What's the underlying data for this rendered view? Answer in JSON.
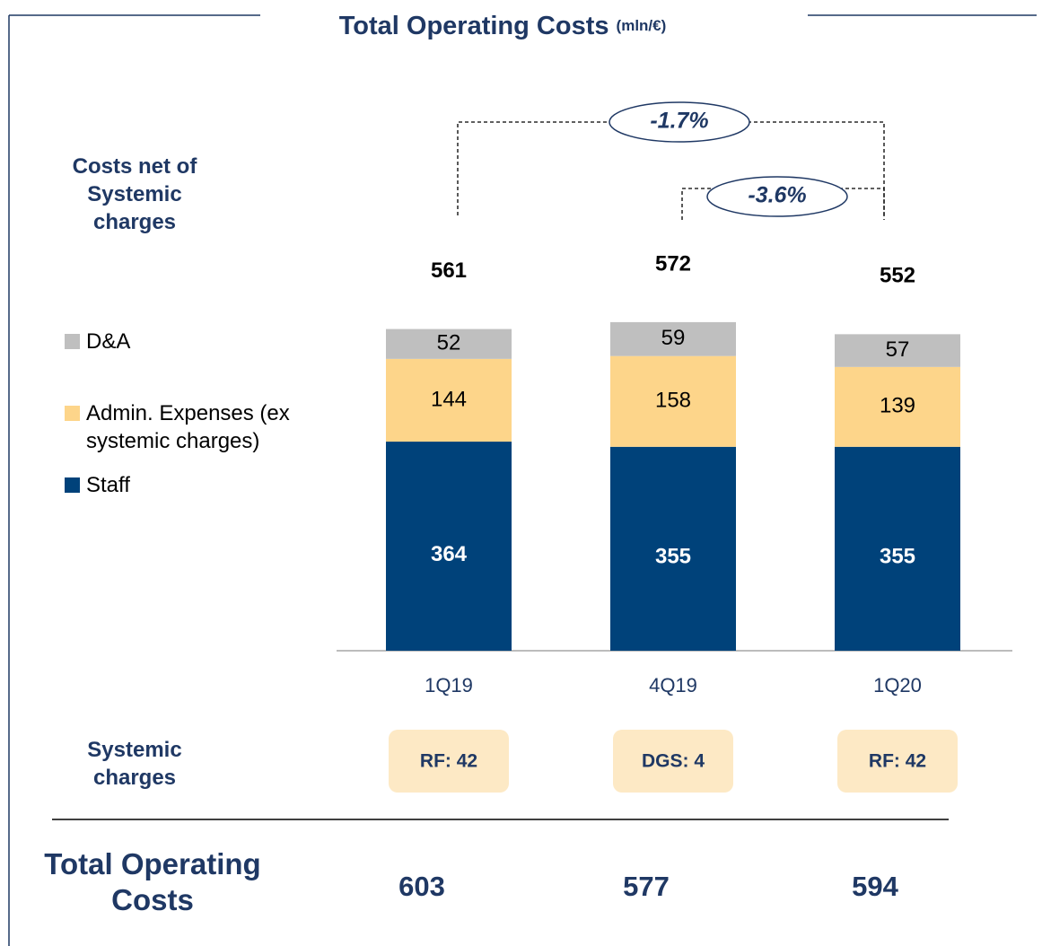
{
  "chart_data": {
    "type": "stacked_bar",
    "title": "Total Operating Costs",
    "subtitle": "(mln/€)",
    "series_group_label": "Costs net of Systemic charges",
    "categories": [
      "1Q19",
      "4Q19",
      "1Q20"
    ],
    "series": [
      {
        "name": "Staff",
        "color": "#00427a",
        "values": [
          364,
          355,
          355
        ]
      },
      {
        "name": "Admin. Expenses (ex systemic charges)",
        "color": "#fdd58a",
        "values": [
          144,
          158,
          139
        ]
      },
      {
        "name": "D&A",
        "color": "#bfbfbf",
        "values": [
          52,
          59,
          57
        ]
      }
    ],
    "totals": [
      561,
      572,
      552
    ],
    "annotations": [
      {
        "text": "-1.7%",
        "from": "1Q19",
        "to": "1Q20"
      },
      {
        "text": "-3.6%",
        "from": "4Q19",
        "to": "1Q20"
      }
    ],
    "systemic_charges": {
      "label": "Systemic charges",
      "values": [
        "RF: 42",
        "DGS: 4",
        "RF: 42"
      ]
    },
    "total_operating_costs": {
      "label": "Total Operating Costs",
      "values": [
        603,
        577,
        594
      ]
    }
  }
}
